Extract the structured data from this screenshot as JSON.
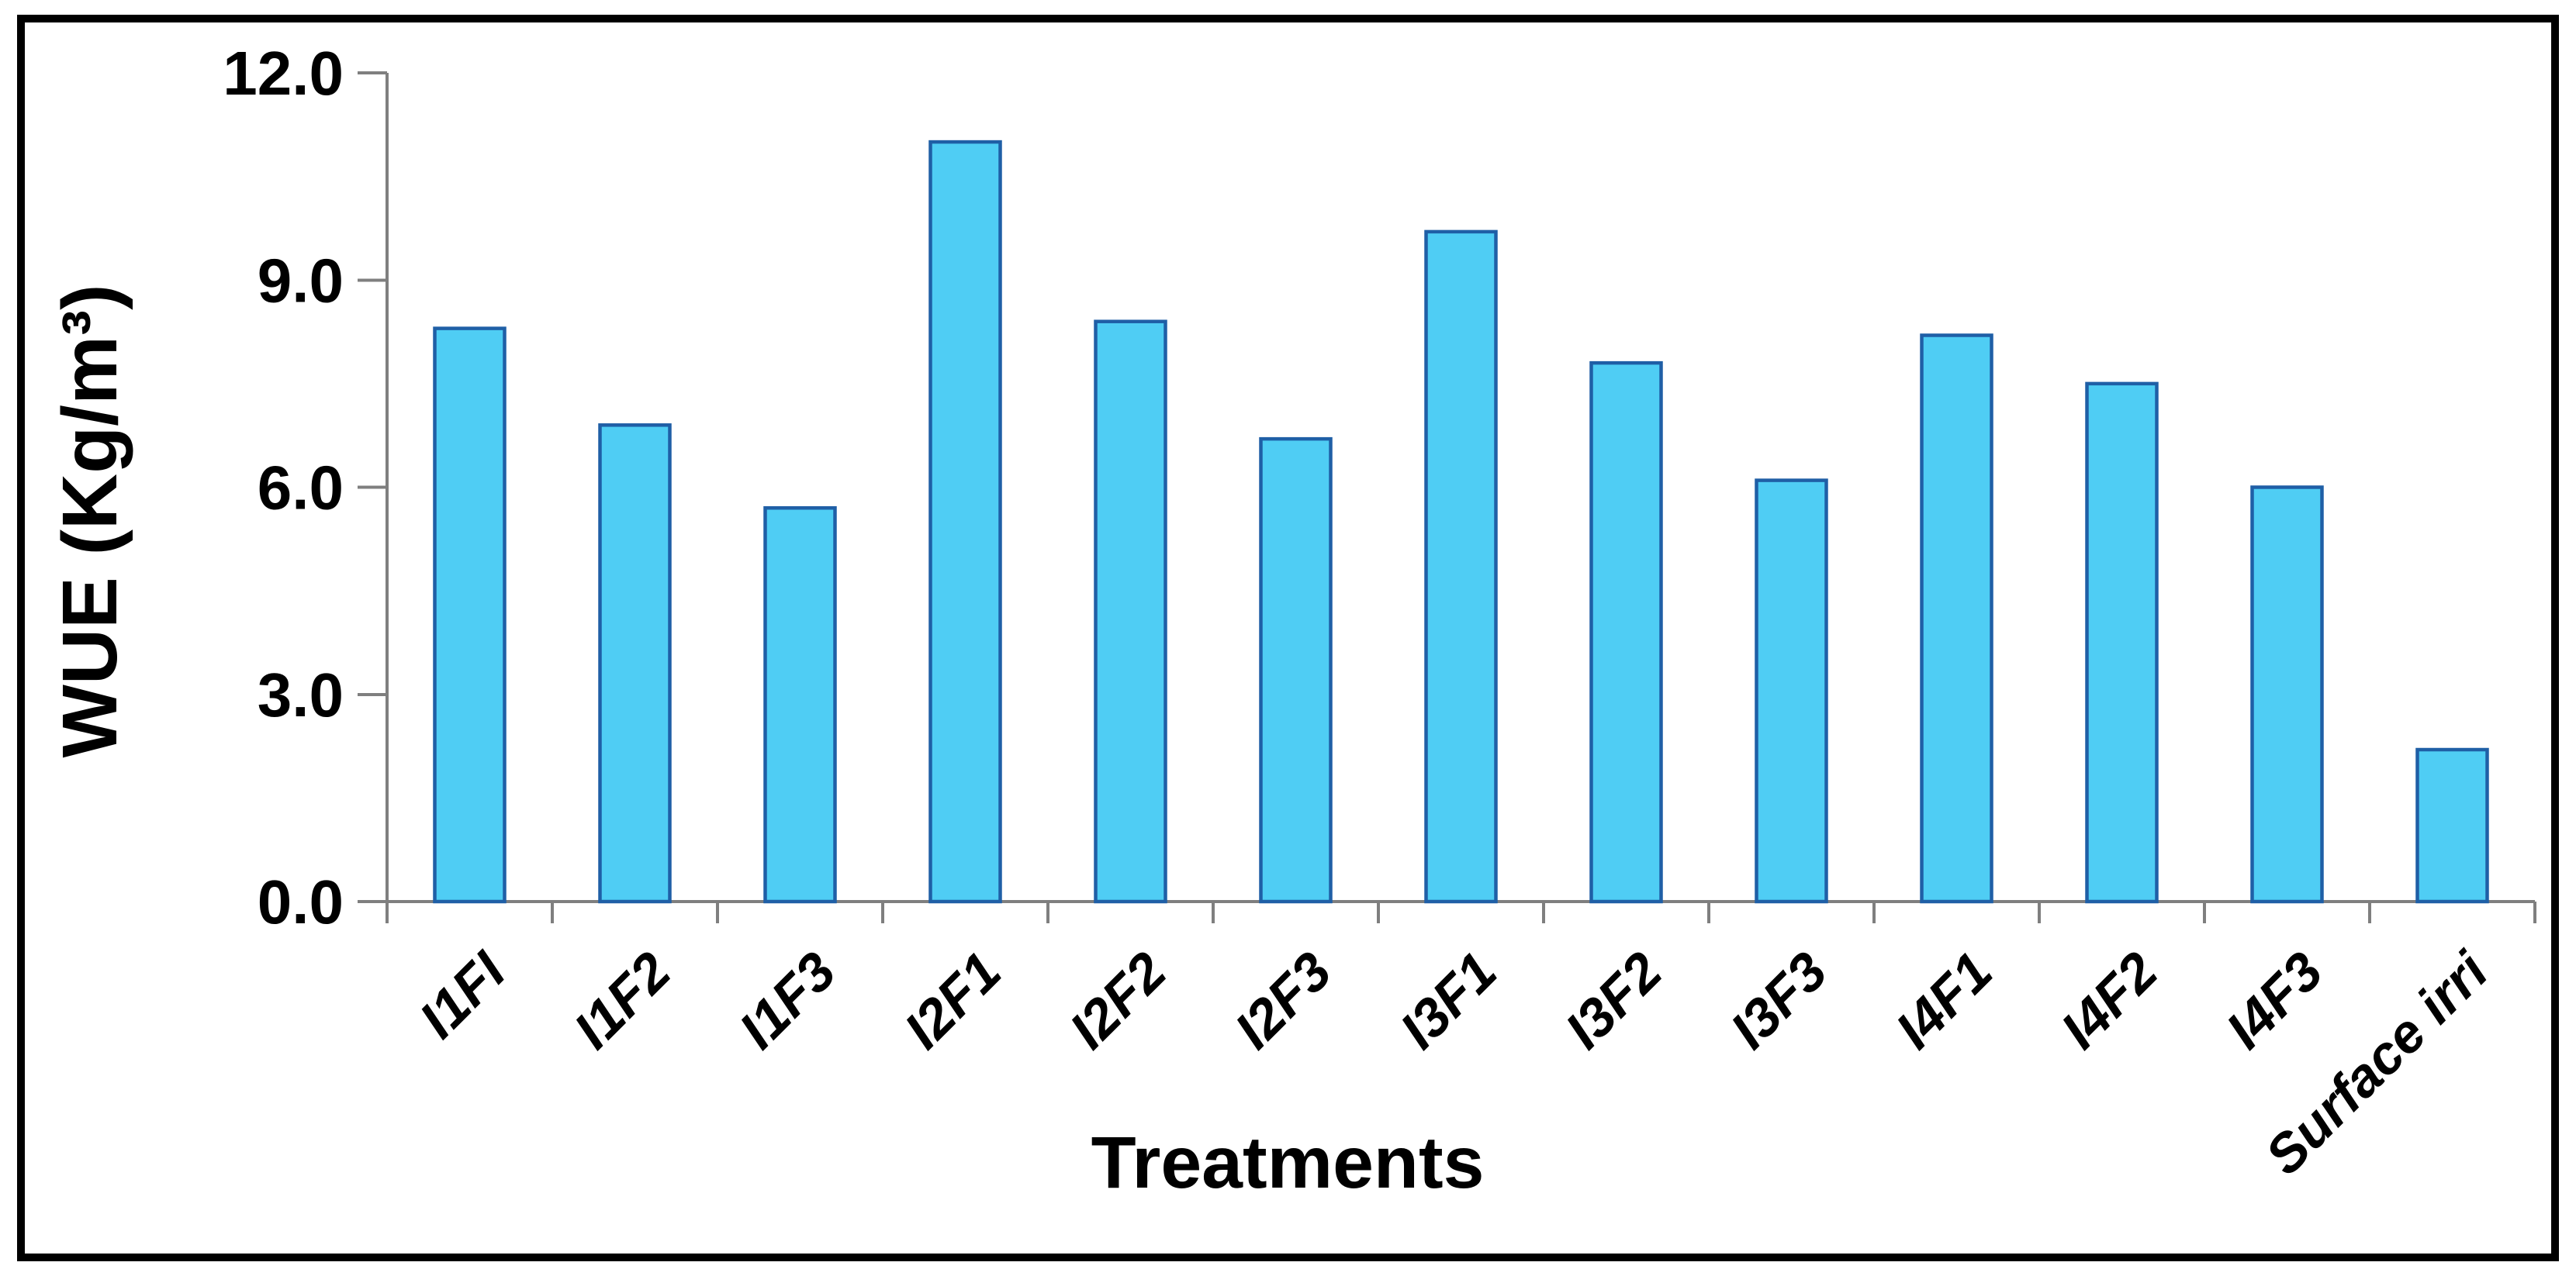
{
  "figure": {
    "background": "#ffffff",
    "frame_color": "#000000"
  },
  "chart_data": {
    "type": "bar",
    "title": "",
    "categories": [
      "I1FI",
      "I1F2",
      "I1F3",
      "I2F1",
      "I2F2",
      "I2F3",
      "I3F1",
      "I3F2",
      "I3F3",
      "I4F1",
      "I4F2",
      "I4F3",
      "Surface irri"
    ],
    "values": [
      8.3,
      6.9,
      5.7,
      11.0,
      8.4,
      6.7,
      9.7,
      7.8,
      6.1,
      8.2,
      7.5,
      6.0,
      2.2
    ],
    "xlabel": "Treatments",
    "ylabel": "WUE (Kg/m³)",
    "ylim": [
      0,
      12
    ],
    "ytick_step": 3,
    "ytick_labels": [
      "0.0",
      "3.0",
      "6.0",
      "9.0",
      "12.0"
    ],
    "grid": "off",
    "legend": "none",
    "xtick_rotation_deg": 45,
    "colors": {
      "bar_fill": "#4fcdf4",
      "bar_stroke": "#1f5fa6",
      "axis_line": "#7f7f7f",
      "text": "#000000"
    }
  }
}
